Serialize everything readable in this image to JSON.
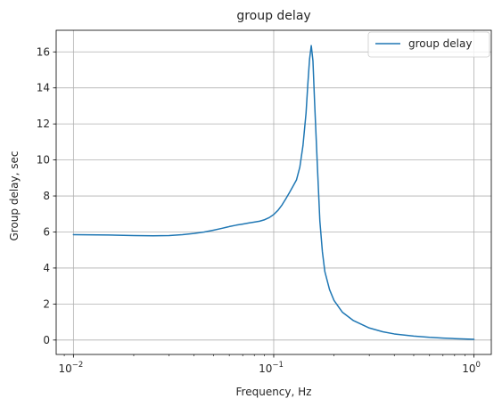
{
  "chart_data": {
    "type": "line",
    "title": "group delay",
    "xlabel": "Frequency, Hz",
    "ylabel": "Group delay, sec",
    "xscale": "log",
    "xlim": [
      0.0082,
      1.22
    ],
    "ylim": [
      -0.8,
      17.2
    ],
    "xticks": [
      {
        "value": 0.01,
        "base": "10",
        "exp": "−2"
      },
      {
        "value": 0.1,
        "base": "10",
        "exp": "−1"
      },
      {
        "value": 1,
        "base": "10",
        "exp": "0"
      }
    ],
    "yticks": [
      0,
      2,
      4,
      6,
      8,
      10,
      12,
      14,
      16
    ],
    "grid": true,
    "legend": {
      "position": "top-right",
      "entries": [
        "group delay"
      ]
    },
    "series": [
      {
        "name": "group delay",
        "color": "#1f77b4",
        "points": [
          [
            0.01,
            5.85
          ],
          [
            0.015,
            5.83
          ],
          [
            0.02,
            5.8
          ],
          [
            0.025,
            5.79
          ],
          [
            0.03,
            5.8
          ],
          [
            0.035,
            5.85
          ],
          [
            0.04,
            5.92
          ],
          [
            0.045,
            6.0
          ],
          [
            0.05,
            6.1
          ],
          [
            0.055,
            6.2
          ],
          [
            0.06,
            6.3
          ],
          [
            0.065,
            6.38
          ],
          [
            0.07,
            6.44
          ],
          [
            0.075,
            6.5
          ],
          [
            0.08,
            6.55
          ],
          [
            0.085,
            6.6
          ],
          [
            0.09,
            6.68
          ],
          [
            0.095,
            6.8
          ],
          [
            0.1,
            6.97
          ],
          [
            0.105,
            7.2
          ],
          [
            0.11,
            7.5
          ],
          [
            0.115,
            7.85
          ],
          [
            0.12,
            8.2
          ],
          [
            0.125,
            8.55
          ],
          [
            0.13,
            8.9
          ],
          [
            0.135,
            9.6
          ],
          [
            0.14,
            10.8
          ],
          [
            0.145,
            12.6
          ],
          [
            0.148,
            14.2
          ],
          [
            0.151,
            15.6
          ],
          [
            0.154,
            16.35
          ],
          [
            0.157,
            15.5
          ],
          [
            0.16,
            13.2
          ],
          [
            0.165,
            9.8
          ],
          [
            0.17,
            6.6
          ],
          [
            0.175,
            4.9
          ],
          [
            0.18,
            3.8
          ],
          [
            0.19,
            2.8
          ],
          [
            0.2,
            2.2
          ],
          [
            0.22,
            1.55
          ],
          [
            0.25,
            1.08
          ],
          [
            0.3,
            0.67
          ],
          [
            0.35,
            0.46
          ],
          [
            0.4,
            0.34
          ],
          [
            0.5,
            0.22
          ],
          [
            0.6,
            0.15
          ],
          [
            0.7,
            0.11
          ],
          [
            0.8,
            0.08
          ],
          [
            0.9,
            0.06
          ],
          [
            1.0,
            0.04
          ]
        ]
      }
    ]
  }
}
